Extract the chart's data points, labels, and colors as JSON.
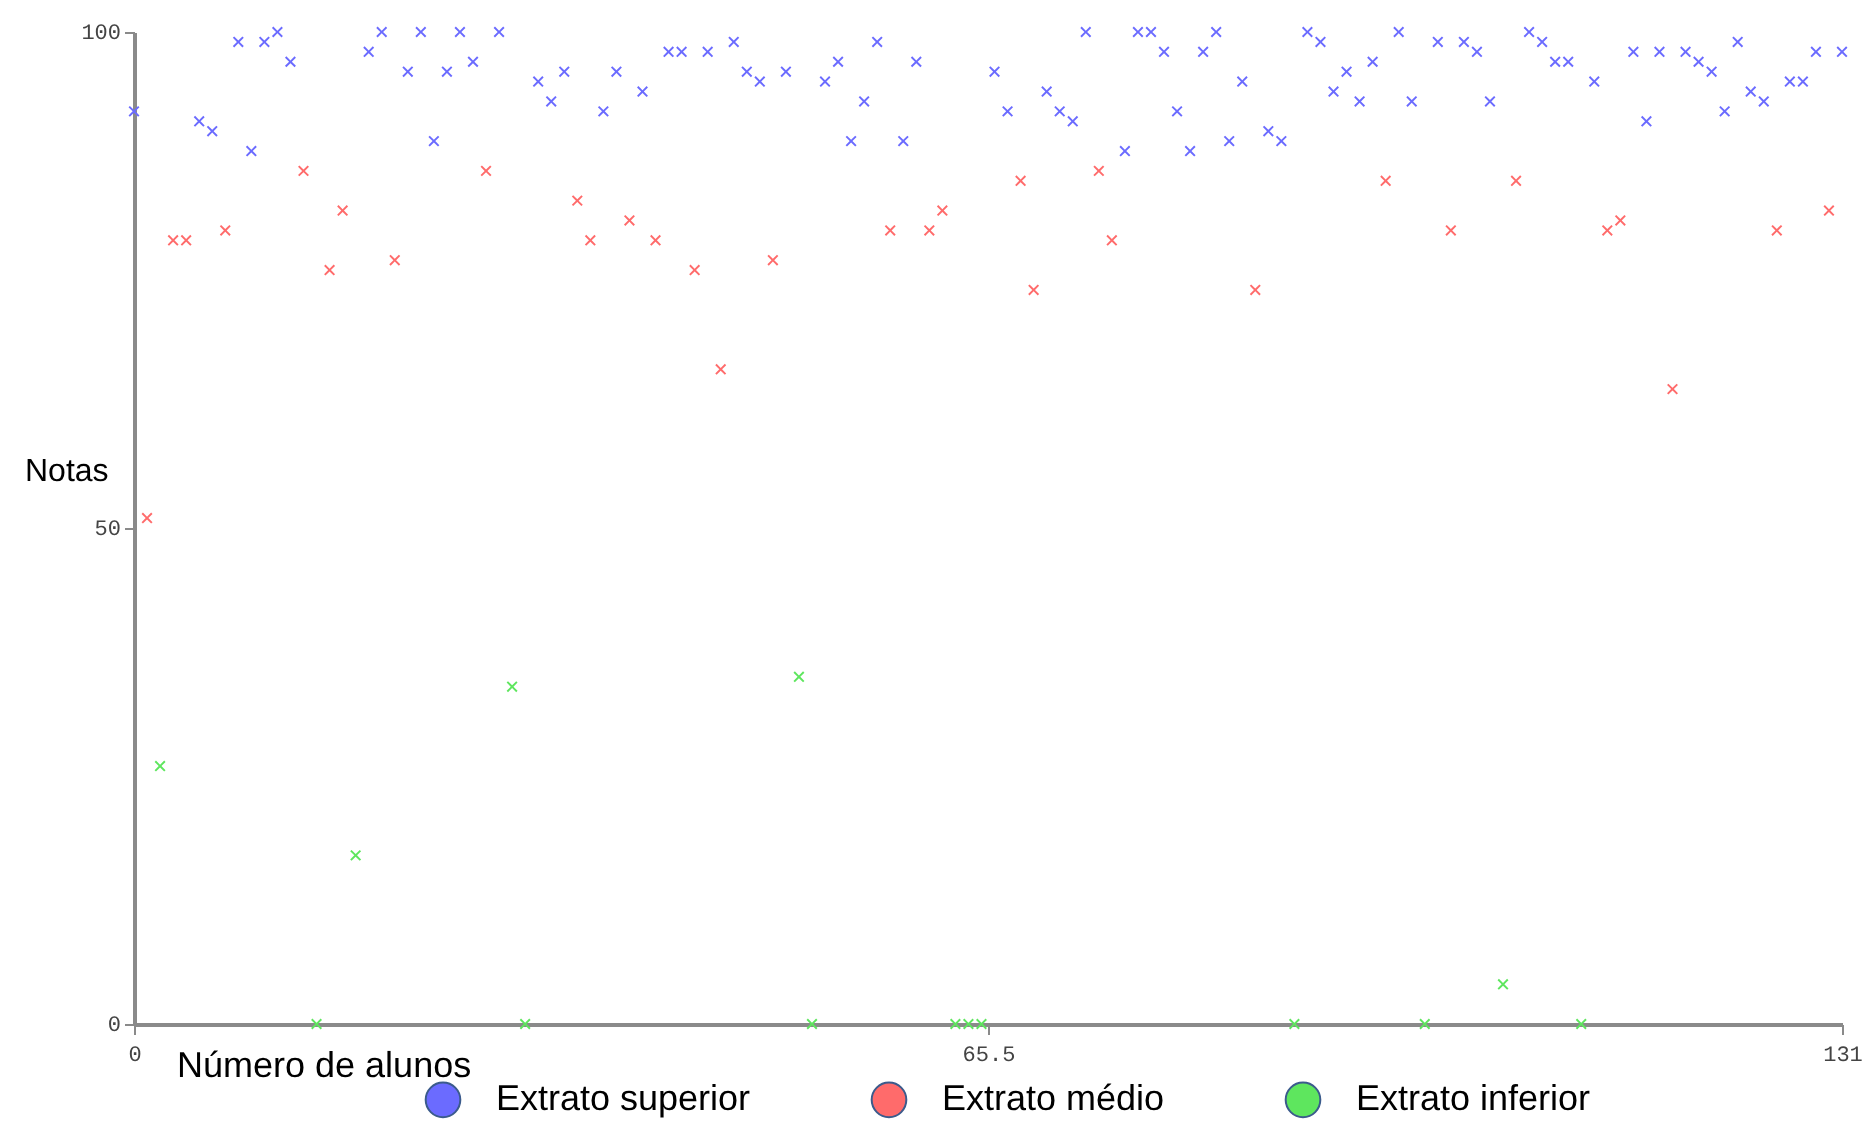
{
  "chart_data": {
    "type": "scatter",
    "xlabel": "Número de alunos",
    "ylabel": "Notas",
    "xlim": [
      0,
      131
    ],
    "xticks": [
      0,
      65.5,
      131
    ],
    "ylim": [
      0,
      100
    ],
    "yticks": [
      0,
      50,
      100
    ],
    "grid": false,
    "legend": "bottom",
    "marker": "cross",
    "series": [
      {
        "name": "Extrato superior",
        "color": "#6b6bff",
        "x": [
          0,
          5,
          6,
          8,
          9,
          10,
          11,
          12,
          18,
          19,
          21,
          22,
          23,
          24,
          25,
          26,
          28,
          31,
          32,
          33,
          36,
          37,
          39,
          41,
          42,
          44,
          46,
          47,
          48,
          50,
          53,
          54,
          55,
          56,
          57,
          59,
          60,
          66,
          67,
          70,
          71,
          72,
          73,
          76,
          77,
          78,
          79,
          80,
          81,
          82,
          83,
          84,
          85,
          87,
          88,
          90,
          91,
          92,
          93,
          94,
          95,
          97,
          98,
          100,
          102,
          103,
          104,
          107,
          108,
          109,
          110,
          112,
          115,
          116,
          117,
          119,
          120,
          121,
          122,
          123,
          124,
          125,
          127,
          128,
          129,
          131
        ],
        "values": [
          92,
          91,
          90,
          99,
          88,
          99,
          100,
          97,
          98,
          100,
          96,
          100,
          89,
          96,
          100,
          97,
          100,
          95,
          93,
          96,
          92,
          96,
          94,
          98,
          98,
          98,
          99,
          96,
          95,
          96,
          95,
          97,
          89,
          93,
          99,
          89,
          97,
          96,
          92,
          94,
          92,
          91,
          100,
          88,
          100,
          100,
          98,
          92,
          88,
          98,
          100,
          89,
          95,
          90,
          89,
          100,
          99,
          94,
          96,
          93,
          97,
          100,
          93,
          99,
          99,
          98,
          93,
          100,
          99,
          97,
          97,
          95,
          98,
          91,
          98,
          98,
          97,
          96,
          92,
          99,
          94,
          93,
          95,
          95,
          98,
          98
        ]
      },
      {
        "name": "Extrato médio",
        "color": "#ff6b6b",
        "x": [
          1,
          3,
          4,
          7,
          13,
          15,
          16,
          20,
          27,
          34,
          35,
          38,
          40,
          43,
          45,
          49,
          58,
          61,
          62,
          68,
          69,
          74,
          75,
          86,
          96,
          101,
          106,
          113,
          114,
          118,
          126,
          130
        ],
        "values": [
          51,
          79,
          79,
          80,
          86,
          76,
          82,
          77,
          86,
          83,
          79,
          81,
          79,
          76,
          66,
          77,
          80,
          80,
          82,
          85,
          74,
          86,
          79,
          74,
          85,
          80,
          85,
          80,
          81,
          64,
          80,
          82
        ]
      },
      {
        "name": "Extrato inferior",
        "color": "#5ee65e",
        "x": [
          2,
          14,
          17,
          29,
          30,
          51,
          52,
          63,
          64,
          65,
          89,
          99,
          105,
          111
        ],
        "values": [
          26,
          0,
          17,
          34,
          0,
          35,
          0,
          0,
          0,
          0,
          0,
          0,
          4,
          0
        ]
      }
    ]
  }
}
